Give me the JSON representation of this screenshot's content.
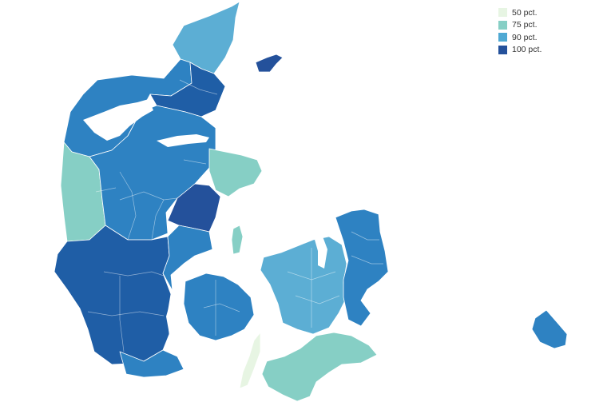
{
  "legend": {
    "items": [
      {
        "label": "50 pct.",
        "color": "#e7f5e3"
      },
      {
        "label": "75 pct.",
        "color": "#86cfc5"
      },
      {
        "label": "90 pct.",
        "color": "#4fa9d3"
      },
      {
        "label": "100 pct.",
        "color": "#24519b"
      }
    ]
  },
  "palette": {
    "deep": "#1f5ea6",
    "mid_blue": "#2e82c2",
    "light_blue": "#5caed4",
    "teal": "#86cfc5",
    "palest": "#e7f5e3",
    "navy": "#24519b",
    "background": "#ffffff"
  },
  "map": {
    "country": "Denmark",
    "shading": "choropleth by municipality",
    "regions": [
      {
        "name": "north-jutland-tip",
        "level": "light_blue"
      },
      {
        "name": "north-jutland-west",
        "level": "mid_blue"
      },
      {
        "name": "north-jutland-east",
        "level": "deep"
      },
      {
        "name": "mid-jutland-west",
        "level": "teal"
      },
      {
        "name": "mid-jutland-centre",
        "level": "mid_blue"
      },
      {
        "name": "djursland",
        "level": "teal"
      },
      {
        "name": "aarhus",
        "level": "navy"
      },
      {
        "name": "south-jutland-west",
        "level": "deep"
      },
      {
        "name": "south-jutland-east",
        "level": "mid_blue"
      },
      {
        "name": "funen",
        "level": "mid_blue"
      },
      {
        "name": "zealand-west",
        "level": "light_blue"
      },
      {
        "name": "copenhagen-area",
        "level": "mid_blue"
      },
      {
        "name": "lolland-falster",
        "level": "teal"
      },
      {
        "name": "laeso",
        "level": "navy"
      },
      {
        "name": "bornholm",
        "level": "mid_blue"
      },
      {
        "name": "samso",
        "level": "teal"
      },
      {
        "name": "langeland",
        "level": "palest"
      }
    ]
  }
}
